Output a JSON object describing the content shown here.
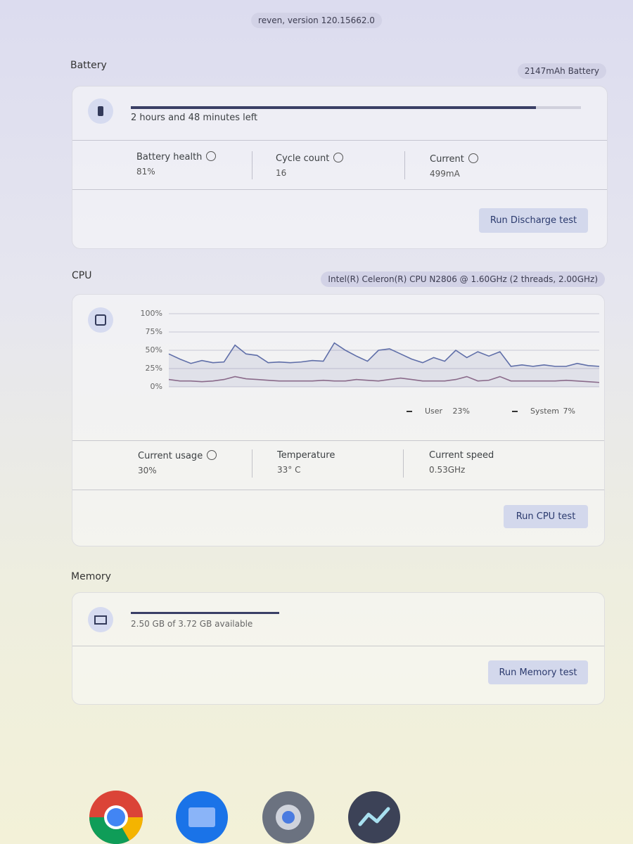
{
  "header": {
    "version": "reven, version 120.15662.0"
  },
  "battery": {
    "title": "Battery",
    "badge": "2147mAh Battery",
    "time_left": "2 hours and 48 minutes left",
    "charge_percent": 90,
    "stats": [
      {
        "label": "Battery health",
        "value": "81%"
      },
      {
        "label": "Cycle count",
        "value": "16"
      },
      {
        "label": "Current",
        "value": "499mA"
      }
    ],
    "button": "Run Discharge test"
  },
  "cpu": {
    "title": "CPU",
    "badge": "Intel(R) Celeron(R) CPU N2806 @ 1.60GHz (2 threads, 2.00GHz)",
    "chart": {
      "type": "line",
      "ylim": [
        0,
        100
      ],
      "yticks": [
        {
          "value": 0,
          "label": "0%"
        },
        {
          "value": 25,
          "label": "25%"
        },
        {
          "value": 50,
          "label": "50%"
        },
        {
          "value": 75,
          "label": "75%"
        },
        {
          "value": 100,
          "label": "100%"
        }
      ],
      "series": [
        {
          "name": "User",
          "legend_value": "23%",
          "color": "#5f6ea8",
          "values": [
            45,
            38,
            32,
            36,
            33,
            34,
            57,
            45,
            43,
            33,
            34,
            33,
            34,
            36,
            35,
            60,
            50,
            42,
            35,
            50,
            52,
            45,
            38,
            33,
            40,
            35,
            50,
            40,
            48,
            42,
            48,
            28,
            30,
            28,
            30,
            28,
            28,
            32,
            29,
            28
          ]
        },
        {
          "name": "System",
          "legend_value": "7%",
          "color": "#8a6a8a",
          "values": [
            10,
            8,
            8,
            7,
            8,
            10,
            14,
            11,
            10,
            9,
            8,
            8,
            8,
            8,
            9,
            8,
            8,
            10,
            9,
            8,
            10,
            12,
            10,
            8,
            8,
            8,
            10,
            14,
            8,
            9,
            14,
            8,
            8,
            8,
            8,
            8,
            9,
            8,
            7,
            6
          ]
        }
      ]
    },
    "stats": [
      {
        "label": "Current usage",
        "value": "30%"
      },
      {
        "label": "Temperature",
        "value": "33° C"
      },
      {
        "label": "Current speed",
        "value": "0.53GHz"
      }
    ],
    "button": "Run CPU test"
  },
  "memory": {
    "title": "Memory",
    "available": "2.50 GB of 3.72 GB available",
    "bar_percent": 33,
    "button": "Run Memory test"
  }
}
